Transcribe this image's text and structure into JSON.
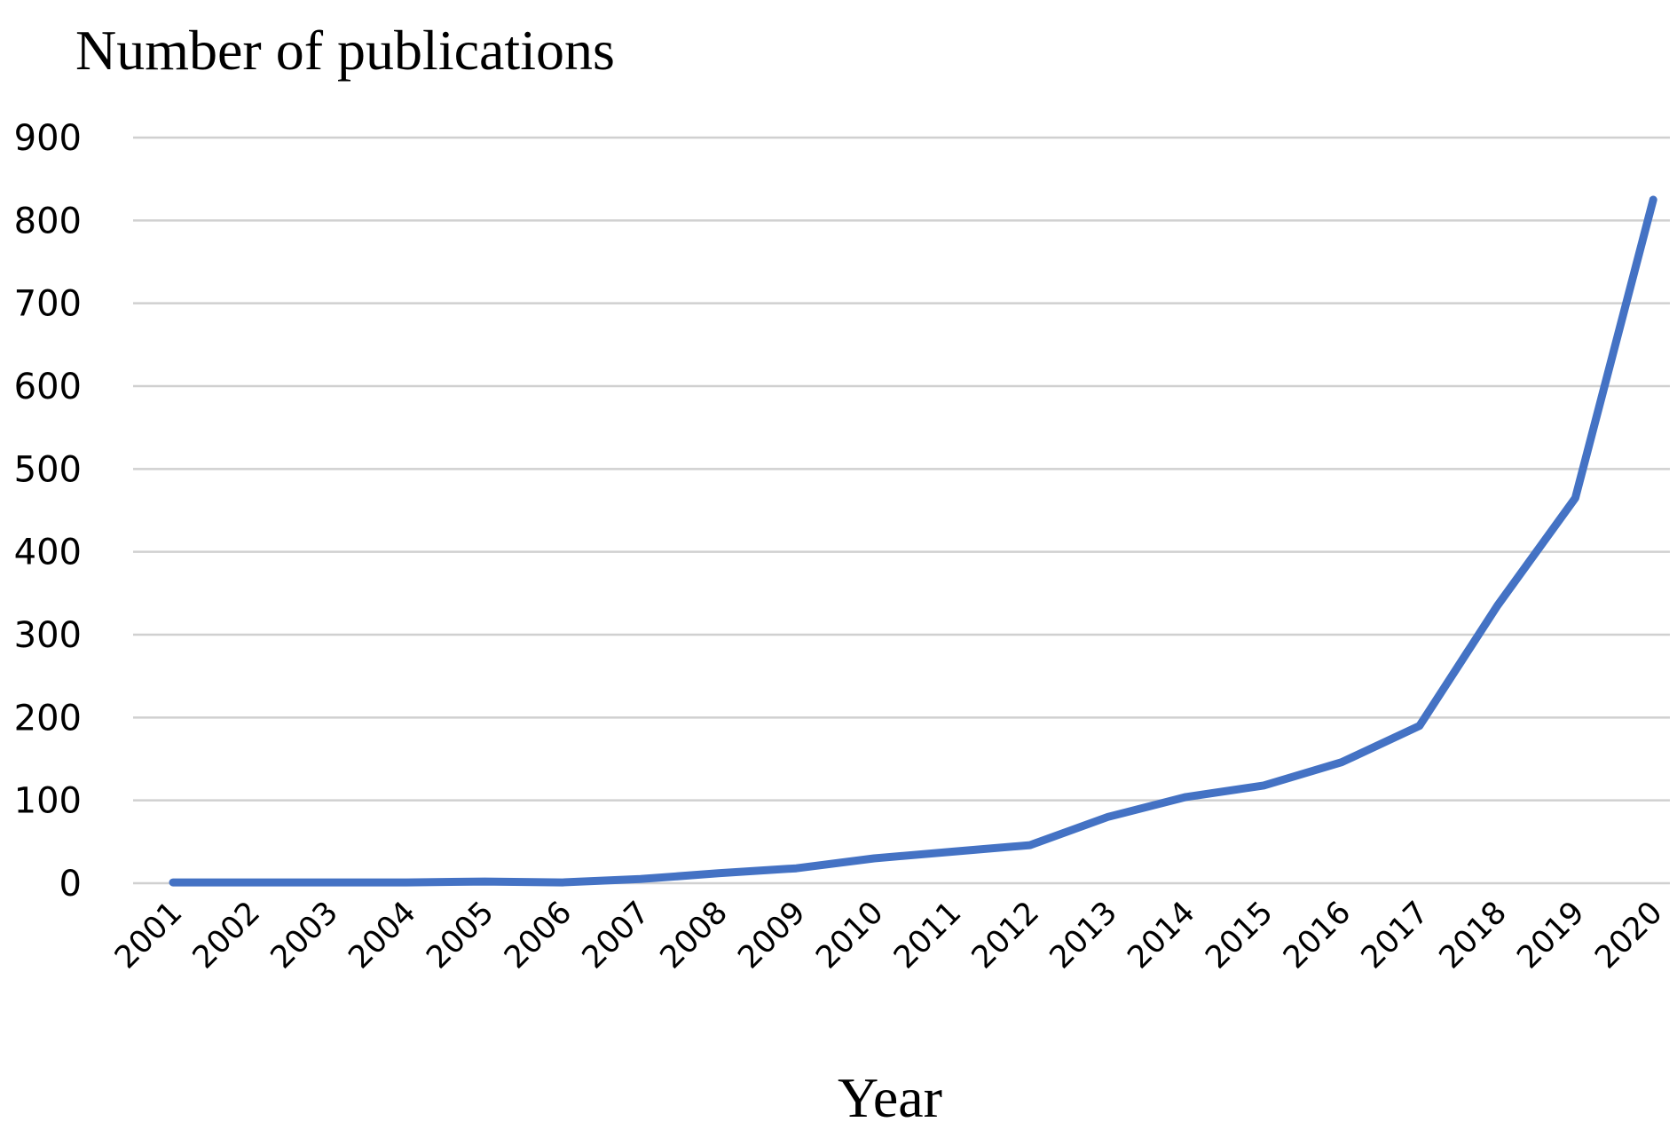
{
  "chart_data": {
    "type": "line",
    "ylabel": "Number of publications",
    "xlabel": "Year",
    "categories": [
      "2001",
      "2002",
      "2003",
      "2004",
      "2005",
      "2006",
      "2007",
      "2008",
      "2009",
      "2010",
      "2011",
      "2012",
      "2013",
      "2014",
      "2015",
      "2016",
      "2017",
      "2018",
      "2019",
      "2020"
    ],
    "series": [
      {
        "values": [
          1,
          1,
          1,
          1,
          2,
          1,
          5,
          12,
          18,
          30,
          38,
          46,
          80,
          104,
          118,
          146,
          190,
          335,
          465,
          825
        ]
      }
    ],
    "ylim": [
      0,
      900
    ],
    "yticks": [
      0,
      100,
      200,
      300,
      400,
      500,
      600,
      700,
      800,
      900
    ],
    "grid": true,
    "legend": "none",
    "line_color": "#4472c4"
  }
}
